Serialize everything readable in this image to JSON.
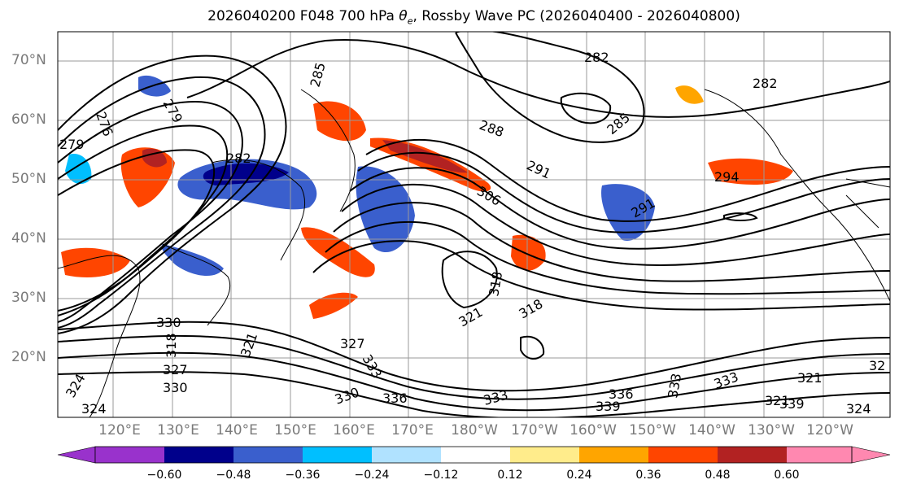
{
  "title": {
    "prefix": "2026040200 F048 700 hPa ",
    "theta_symbol": "θ",
    "theta_sub": "e",
    "suffix": ", Rossby Wave PC (2026040400 - 2026040800)"
  },
  "lat_labels": [
    "70°N",
    "60°N",
    "50°N",
    "40°N",
    "30°N",
    "20°N"
  ],
  "lon_labels": [
    "120°E",
    "130°E",
    "140°E",
    "150°E",
    "160°E",
    "170°E",
    "180°W",
    "170°W",
    "160°W",
    "150°W",
    "140°W",
    "130°W",
    "120°W"
  ],
  "contour_labels": [
    "282",
    "282",
    "285",
    "279",
    "276",
    "279",
    "288",
    "291",
    "294",
    "282",
    "285",
    "291",
    "306",
    "318",
    "321",
    "318",
    "321",
    "330",
    "318",
    "327",
    "333",
    "336",
    "330",
    "339",
    "336",
    "333",
    "324",
    "321",
    "327",
    "321",
    "324",
    "330",
    "324",
    "333",
    "339",
    "333",
    "32"
  ],
  "colorbar": {
    "colors": [
      "#9932cc",
      "#00008b",
      "#3a5fcd",
      "#00bfff",
      "#b0e2ff",
      "#ffffff",
      "#ffec8b",
      "#ffa500",
      "#ff4500",
      "#b22222",
      "#ff88b0"
    ],
    "ticks": [
      "−0.60",
      "−0.48",
      "−0.36",
      "−0.24",
      "−0.12",
      "0.12",
      "0.24",
      "0.36",
      "0.48",
      "0.60"
    ]
  },
  "colors": {
    "contour": "#000000",
    "grid": "#9a9a9a",
    "coast": "#000000",
    "label": "#7a7a7a"
  }
}
